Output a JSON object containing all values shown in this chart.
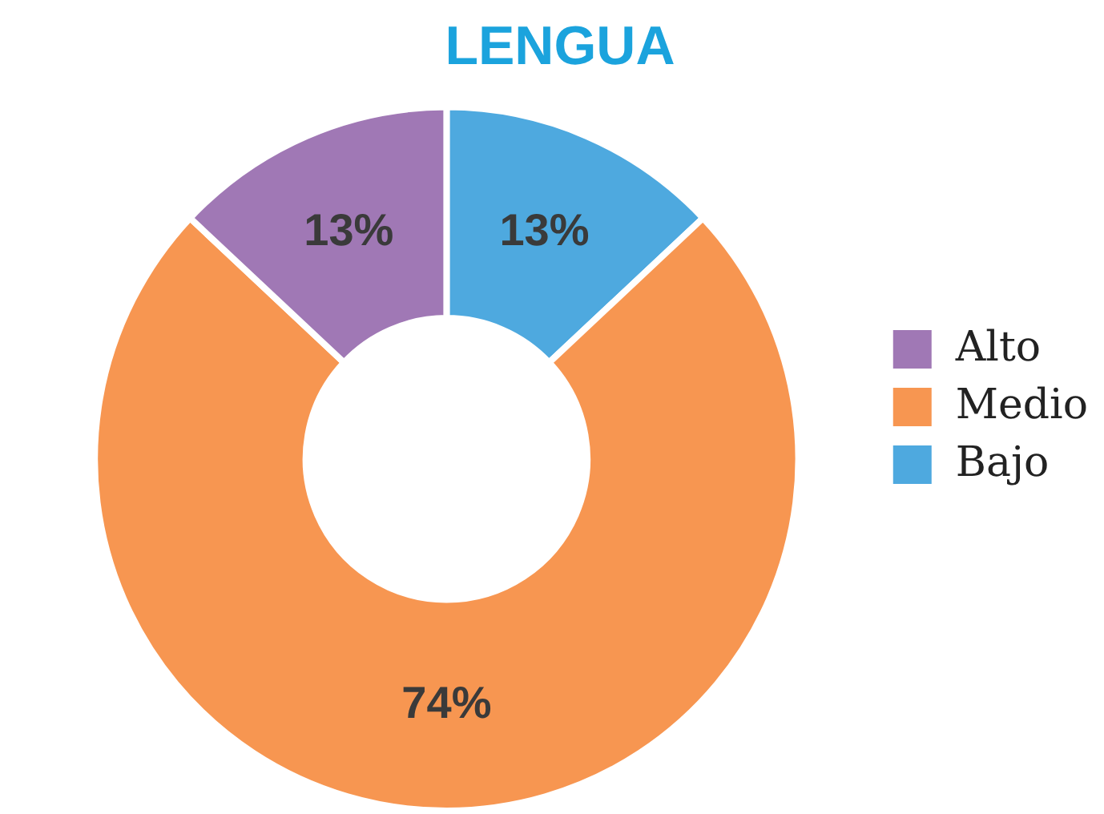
{
  "chart_data": {
    "type": "donut",
    "title": "LENGUA",
    "categories": [
      "Alto",
      "Medio",
      "Bajo"
    ],
    "values": [
      13,
      74,
      13
    ],
    "value_labels": [
      "13%",
      "74%",
      "13%"
    ],
    "colors": [
      "#a078b5",
      "#f79651",
      "#4ea9df"
    ],
    "legend": "right"
  }
}
